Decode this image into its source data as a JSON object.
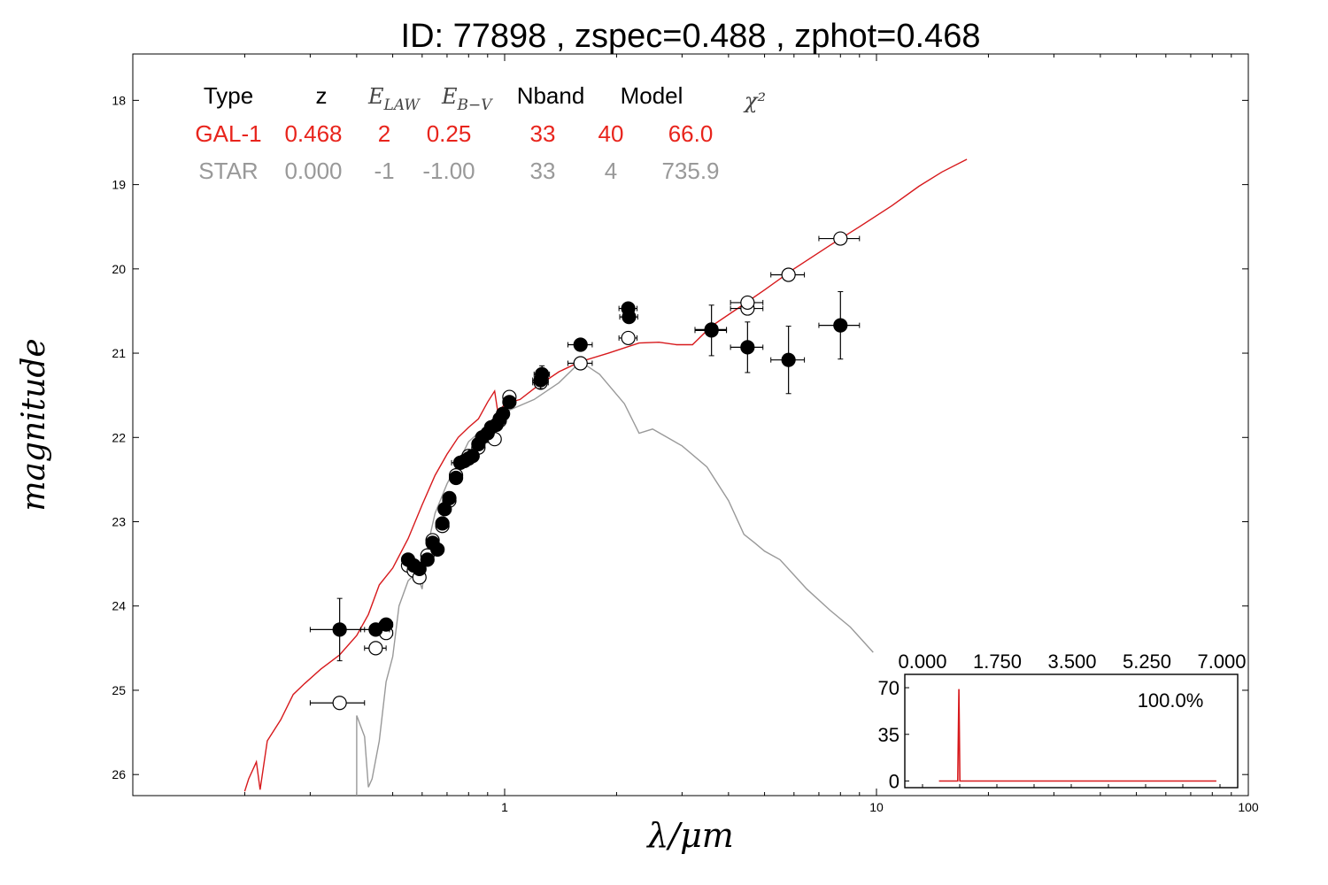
{
  "chart_data": {
    "type": "scatter",
    "title": "ID:  77898 , zspec=0.488 , zphot=0.468",
    "xlabel": "λ/μm",
    "ylabel": "magnitude",
    "x_scale": "log",
    "xlim": [
      0.1,
      100
    ],
    "ylim": [
      26.25,
      17.45
    ],
    "x_tick_labels": [
      "1",
      "10",
      "100"
    ],
    "x_tick_values": [
      1,
      10,
      100
    ],
    "y_tick_values": [
      18,
      19,
      20,
      21,
      22,
      23,
      24,
      25,
      26
    ],
    "y_tick_labels": [
      "18",
      "19",
      "20",
      "21",
      "22",
      "23",
      "24",
      "25",
      "26"
    ],
    "grid": false,
    "fit_table": {
      "headers": [
        "Type",
        "z",
        "E_LAW",
        "E_B−V",
        "Nband",
        "Model",
        "χ²"
      ],
      "rows": [
        {
          "name": "GAL-1",
          "color": "#e8241c",
          "cells": [
            "GAL-1",
            "0.468",
            "2",
            "0.25",
            "33",
            "40",
            "66.0"
          ]
        },
        {
          "name": "STAR",
          "color": "#999999",
          "cells": [
            "STAR",
            "0.000",
            "-1",
            "-1.00",
            "33",
            "4",
            "735.9"
          ]
        }
      ]
    },
    "series": [
      {
        "name": "GAL-1",
        "kind": "line",
        "color": "#d7191c",
        "points": [
          [
            0.2,
            26.2
          ],
          [
            0.205,
            26.05
          ],
          [
            0.215,
            25.85
          ],
          [
            0.22,
            26.18
          ],
          [
            0.23,
            25.6
          ],
          [
            0.25,
            25.35
          ],
          [
            0.27,
            25.05
          ],
          [
            0.29,
            24.92
          ],
          [
            0.32,
            24.75
          ],
          [
            0.36,
            24.58
          ],
          [
            0.4,
            24.35
          ],
          [
            0.43,
            24.1
          ],
          [
            0.46,
            23.75
          ],
          [
            0.5,
            23.55
          ],
          [
            0.55,
            23.2
          ],
          [
            0.6,
            22.8
          ],
          [
            0.65,
            22.45
          ],
          [
            0.7,
            22.2
          ],
          [
            0.75,
            22.0
          ],
          [
            0.8,
            21.88
          ],
          [
            0.85,
            21.78
          ],
          [
            0.9,
            21.58
          ],
          [
            0.94,
            21.45
          ],
          [
            0.96,
            21.72
          ],
          [
            1.0,
            21.6
          ],
          [
            1.1,
            21.55
          ],
          [
            1.2,
            21.42
          ],
          [
            1.4,
            21.22
          ],
          [
            1.6,
            21.1
          ],
          [
            1.9,
            21.0
          ],
          [
            2.3,
            20.88
          ],
          [
            2.6,
            20.87
          ],
          [
            2.9,
            20.9
          ],
          [
            3.2,
            20.9
          ],
          [
            3.6,
            20.68
          ],
          [
            4.2,
            20.48
          ],
          [
            5.0,
            20.25
          ],
          [
            6.0,
            20.0
          ],
          [
            7.5,
            19.72
          ],
          [
            9.0,
            19.5
          ],
          [
            11.0,
            19.25
          ],
          [
            13.0,
            19.02
          ],
          [
            15.0,
            18.85
          ],
          [
            17.5,
            18.7
          ]
        ]
      },
      {
        "name": "STAR",
        "kind": "line",
        "color": "#999999",
        "points": [
          [
            0.4,
            26.25
          ],
          [
            0.4,
            25.3
          ],
          [
            0.42,
            25.55
          ],
          [
            0.43,
            26.15
          ],
          [
            0.44,
            26.05
          ],
          [
            0.46,
            25.6
          ],
          [
            0.48,
            24.9
          ],
          [
            0.5,
            24.6
          ],
          [
            0.52,
            24.0
          ],
          [
            0.55,
            23.7
          ],
          [
            0.58,
            23.6
          ],
          [
            0.6,
            23.8
          ],
          [
            0.62,
            23.3
          ],
          [
            0.65,
            22.9
          ],
          [
            0.7,
            22.55
          ],
          [
            0.75,
            22.3
          ],
          [
            0.8,
            22.05
          ],
          [
            0.9,
            21.85
          ],
          [
            1.0,
            21.7
          ],
          [
            1.2,
            21.55
          ],
          [
            1.4,
            21.35
          ],
          [
            1.6,
            21.1
          ],
          [
            1.8,
            21.25
          ],
          [
            2.1,
            21.6
          ],
          [
            2.3,
            21.95
          ],
          [
            2.5,
            21.9
          ],
          [
            3.0,
            22.1
          ],
          [
            3.5,
            22.35
          ],
          [
            4.0,
            22.75
          ],
          [
            4.4,
            23.15
          ],
          [
            4.7,
            23.25
          ],
          [
            5.0,
            23.35
          ],
          [
            5.5,
            23.45
          ],
          [
            6.5,
            23.8
          ],
          [
            7.5,
            24.05
          ],
          [
            8.5,
            24.25
          ],
          [
            9.8,
            24.55
          ]
        ]
      },
      {
        "name": "Observed",
        "kind": "points-filled",
        "color": "#000000",
        "points": [
          {
            "x": 0.36,
            "y": 24.28,
            "xerr": 0.06,
            "yerr": 0.37
          },
          {
            "x": 0.45,
            "y": 24.28,
            "xerr": 0.04,
            "yerr": 0.05
          },
          {
            "x": 0.48,
            "y": 24.22,
            "xerr": 0.02,
            "yerr": 0.05
          },
          {
            "x": 0.55,
            "y": 23.45,
            "xerr": 0.02,
            "yerr": 0.05
          },
          {
            "x": 0.57,
            "y": 23.52,
            "xerr": 0.02,
            "yerr": 0.05
          },
          {
            "x": 0.59,
            "y": 23.56,
            "xerr": 0.02,
            "yerr": 0.05
          },
          {
            "x": 0.62,
            "y": 23.45,
            "xerr": 0.02,
            "yerr": 0.05
          },
          {
            "x": 0.64,
            "y": 23.25,
            "xerr": 0.02,
            "yerr": 0.05
          },
          {
            "x": 0.66,
            "y": 23.33,
            "xerr": 0.02,
            "yerr": 0.05
          },
          {
            "x": 0.68,
            "y": 23.02,
            "xerr": 0.02,
            "yerr": 0.05
          },
          {
            "x": 0.69,
            "y": 22.85,
            "xerr": 0.02,
            "yerr": 0.05
          },
          {
            "x": 0.71,
            "y": 22.72,
            "xerr": 0.02,
            "yerr": 0.05
          },
          {
            "x": 0.74,
            "y": 22.48,
            "xerr": 0.02,
            "yerr": 0.05
          },
          {
            "x": 0.76,
            "y": 22.3,
            "xerr": 0.04,
            "yerr": 0.05
          },
          {
            "x": 0.78,
            "y": 22.28,
            "xerr": 0.02,
            "yerr": 0.05
          },
          {
            "x": 0.8,
            "y": 22.25,
            "xerr": 0.02,
            "yerr": 0.05
          },
          {
            "x": 0.82,
            "y": 22.22,
            "xerr": 0.02,
            "yerr": 0.05
          },
          {
            "x": 0.85,
            "y": 22.08,
            "xerr": 0.02,
            "yerr": 0.05
          },
          {
            "x": 0.87,
            "y": 22.0,
            "xerr": 0.02,
            "yerr": 0.05
          },
          {
            "x": 0.9,
            "y": 21.95,
            "xerr": 0.02,
            "yerr": 0.05
          },
          {
            "x": 0.92,
            "y": 21.88,
            "xerr": 0.02,
            "yerr": 0.05
          },
          {
            "x": 0.95,
            "y": 21.85,
            "xerr": 0.02,
            "yerr": 0.05
          },
          {
            "x": 0.97,
            "y": 21.78,
            "xerr": 0.02,
            "yerr": 0.05
          },
          {
            "x": 0.99,
            "y": 21.72,
            "xerr": 0.02,
            "yerr": 0.05
          },
          {
            "x": 1.03,
            "y": 21.58,
            "xerr": 0.02,
            "yerr": 0.05
          },
          {
            "x": 1.25,
            "y": 21.32,
            "xerr": 0.06,
            "yerr": 0.1
          },
          {
            "x": 1.26,
            "y": 21.25,
            "xerr": 0.06,
            "yerr": 0.1
          },
          {
            "x": 1.6,
            "y": 20.9,
            "xerr": 0.12,
            "yerr": 0.05
          },
          {
            "x": 2.15,
            "y": 20.47,
            "xerr": 0.12,
            "yerr": 0.05
          },
          {
            "x": 2.16,
            "y": 20.57,
            "xerr": 0.12,
            "yerr": 0.05
          },
          {
            "x": 3.6,
            "y": 20.73,
            "xerr": 0.35,
            "yerr": 0.3
          },
          {
            "x": 4.5,
            "y": 20.93,
            "xerr": 0.45,
            "yerr": 0.3
          },
          {
            "x": 5.8,
            "y": 21.08,
            "xerr": 0.6,
            "yerr": 0.4
          },
          {
            "x": 8.0,
            "y": 20.67,
            "xerr": 1.0,
            "yerr": 0.4
          }
        ]
      },
      {
        "name": "Model",
        "kind": "points-open",
        "color": "#000000",
        "points": [
          {
            "x": 0.36,
            "y": 25.15,
            "xerr": 0.06
          },
          {
            "x": 0.45,
            "y": 24.5,
            "xerr": 0.03
          },
          {
            "x": 0.48,
            "y": 24.32,
            "xerr": 0.02
          },
          {
            "x": 0.55,
            "y": 23.52,
            "xerr": 0.02
          },
          {
            "x": 0.57,
            "y": 23.58,
            "xerr": 0.02
          },
          {
            "x": 0.59,
            "y": 23.66,
            "xerr": 0.02
          },
          {
            "x": 0.62,
            "y": 23.4,
            "xerr": 0.02
          },
          {
            "x": 0.64,
            "y": 23.22,
            "xerr": 0.02
          },
          {
            "x": 0.68,
            "y": 23.05,
            "xerr": 0.02
          },
          {
            "x": 0.71,
            "y": 22.75,
            "xerr": 0.02
          },
          {
            "x": 0.74,
            "y": 22.45,
            "xerr": 0.02
          },
          {
            "x": 0.8,
            "y": 22.22,
            "xerr": 0.02
          },
          {
            "x": 0.85,
            "y": 22.12,
            "xerr": 0.02
          },
          {
            "x": 0.9,
            "y": 21.98,
            "xerr": 0.02
          },
          {
            "x": 0.94,
            "y": 22.02,
            "xerr": 0.02
          },
          {
            "x": 0.97,
            "y": 21.8,
            "xerr": 0.02
          },
          {
            "x": 1.03,
            "y": 21.52,
            "xerr": 0.02
          },
          {
            "x": 1.25,
            "y": 21.35,
            "xerr": 0.06
          },
          {
            "x": 1.6,
            "y": 21.12,
            "xerr": 0.12
          },
          {
            "x": 2.15,
            "y": 20.82,
            "xerr": 0.12
          },
          {
            "x": 3.6,
            "y": 20.72,
            "xerr": 0.35
          },
          {
            "x": 4.5,
            "y": 20.47,
            "xerr": 0.45
          },
          {
            "x": 4.5,
            "y": 20.4,
            "xerr": 0.45
          },
          {
            "x": 5.8,
            "y": 20.07,
            "xerr": 0.6
          },
          {
            "x": 8.0,
            "y": 19.64,
            "xerr": 1.0
          }
        ]
      }
    ],
    "inset": {
      "type": "line",
      "title": "100.0%",
      "xlim": [
        -0.8,
        7.0
      ],
      "ylim": [
        -5,
        80
      ],
      "x_tick_values": [
        0.0,
        1.75,
        3.5,
        5.25,
        7.0
      ],
      "x_tick_labels": [
        "0.000",
        "1.750",
        "3.500",
        "5.250",
        "7.000"
      ],
      "y_tick_values": [
        0,
        35,
        70
      ],
      "y_tick_labels": [
        "0",
        "35",
        "70"
      ],
      "color": "#d7191c",
      "points": [
        [
          0.0,
          0
        ],
        [
          0.44,
          0
        ],
        [
          0.468,
          69
        ],
        [
          0.49,
          0
        ],
        [
          6.5,
          0
        ]
      ]
    }
  }
}
